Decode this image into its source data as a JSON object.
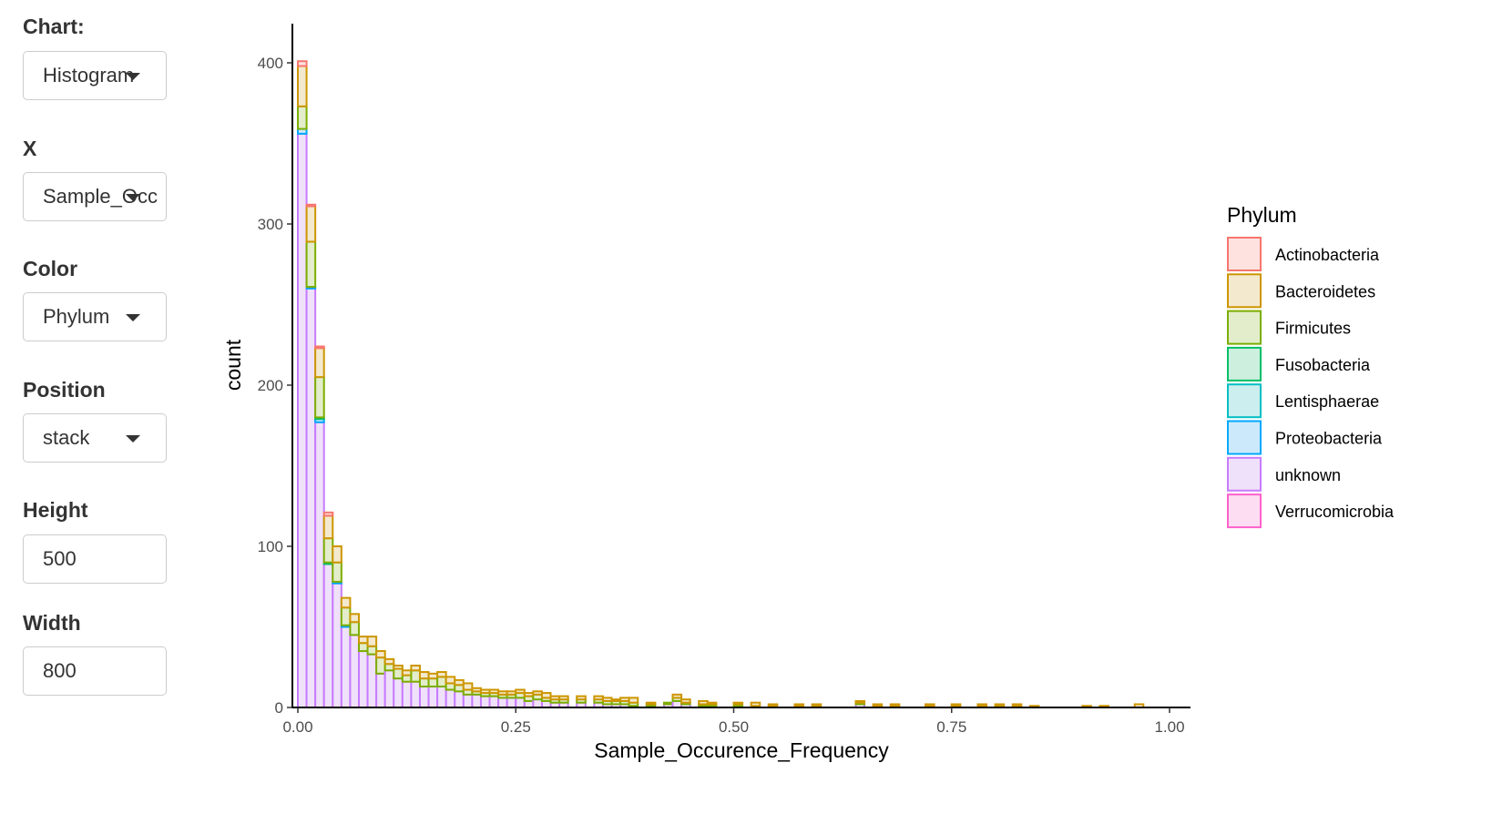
{
  "sidebar": {
    "chart": {
      "label": "Chart:",
      "value": "Histogram"
    },
    "x": {
      "label": "X",
      "value": "Sample_Occ"
    },
    "color": {
      "label": "Color",
      "value": "Phylum"
    },
    "position": {
      "label": "Position",
      "value": "stack"
    },
    "height": {
      "label": "Height",
      "value": "500"
    },
    "width": {
      "label": "Width",
      "value": "800"
    }
  },
  "chart_data": {
    "type": "bar",
    "subtype": "stacked-histogram",
    "xlabel": "Sample_Occurence_Frequency",
    "ylabel": "count",
    "xlim": [
      0,
      1.03
    ],
    "ylim": [
      0,
      420
    ],
    "xticks": [
      0,
      0.25,
      0.5,
      0.75,
      1.0
    ],
    "xtick_labels": [
      "0.00",
      "0.25",
      "0.50",
      "0.75",
      "1.00"
    ],
    "yticks": [
      0,
      100,
      200,
      300,
      400
    ],
    "ytick_labels": [
      "0",
      "100",
      "200",
      "300",
      "400"
    ],
    "grid": false,
    "legend_position": "right",
    "legend_title": "Phylum",
    "bin_width": 0.01,
    "bin_starts": [
      0.0,
      0.01,
      0.02,
      0.03,
      0.04,
      0.05,
      0.06,
      0.07,
      0.08,
      0.09,
      0.1,
      0.11,
      0.12,
      0.13,
      0.14,
      0.15,
      0.16,
      0.17,
      0.18,
      0.19,
      0.2,
      0.21,
      0.22,
      0.23,
      0.24,
      0.25,
      0.26,
      0.27,
      0.28,
      0.29,
      0.3,
      0.32,
      0.34,
      0.35,
      0.36,
      0.37,
      0.38,
      0.4,
      0.42,
      0.43,
      0.44,
      0.46,
      0.47,
      0.5,
      0.52,
      0.54,
      0.57,
      0.59,
      0.64,
      0.66,
      0.68,
      0.72,
      0.75,
      0.78,
      0.8,
      0.82,
      0.84,
      0.9,
      0.92,
      0.96
    ],
    "series": [
      {
        "name": "Actinobacteria",
        "color": "#F8766D",
        "fill": "#FDE2E0",
        "values": [
          3,
          1,
          1,
          2,
          0,
          0,
          0,
          0,
          0,
          0,
          0,
          0,
          0,
          0,
          0,
          0,
          0,
          0,
          0,
          0,
          0,
          0,
          0,
          0,
          0,
          0,
          0,
          0,
          0,
          0,
          0,
          0,
          0,
          0,
          0,
          0,
          0,
          0,
          0,
          0,
          0,
          0,
          0,
          0,
          0,
          0,
          0,
          0,
          0,
          0,
          0,
          0,
          0,
          0,
          0,
          0,
          0,
          0,
          0,
          0
        ]
      },
      {
        "name": "Bacteroidetes",
        "color": "#CD9600",
        "fill": "#F3E9CE",
        "values": [
          25,
          22,
          18,
          14,
          10,
          6,
          5,
          4,
          6,
          4,
          3,
          2,
          3,
          3,
          4,
          3,
          3,
          4,
          3,
          4,
          2,
          2,
          2,
          2,
          2,
          2,
          2,
          2,
          3,
          2,
          2,
          2,
          2,
          2,
          1,
          2,
          3,
          1,
          0,
          2,
          2,
          2,
          1,
          1,
          2,
          1,
          1,
          1,
          1,
          1,
          1,
          1,
          1,
          1,
          1,
          1,
          1,
          1,
          1,
          2
        ]
      },
      {
        "name": "Firmicutes",
        "color": "#7CAE00",
        "fill": "#E3EDCB",
        "values": [
          14,
          28,
          25,
          15,
          12,
          11,
          8,
          5,
          5,
          10,
          4,
          6,
          4,
          7,
          5,
          5,
          6,
          4,
          4,
          3,
          2,
          2,
          2,
          2,
          2,
          3,
          3,
          3,
          2,
          2,
          2,
          2,
          2,
          2,
          2,
          2,
          2,
          1,
          1,
          2,
          1,
          1,
          1,
          1,
          0,
          0,
          0,
          0,
          1,
          1,
          0,
          0,
          1,
          0,
          1,
          0,
          0,
          0,
          0,
          0
        ]
      },
      {
        "name": "Fusobacteria",
        "color": "#00BE67",
        "fill": "#CCEFDE",
        "values": [
          0,
          0,
          1,
          1,
          0,
          0,
          0,
          0,
          0,
          0,
          0,
          0,
          0,
          0,
          0,
          0,
          0,
          0,
          0,
          0,
          0,
          0,
          0,
          0,
          0,
          0,
          0,
          0,
          0,
          0,
          0,
          0,
          0,
          0,
          0,
          0,
          0,
          0,
          0,
          0,
          0,
          0,
          0,
          0,
          0,
          0,
          0,
          0,
          0,
          0,
          0,
          0,
          0,
          0,
          0,
          0,
          0,
          0,
          0,
          0
        ]
      },
      {
        "name": "Lentisphaerae",
        "color": "#00BFC4",
        "fill": "#CCEEEF",
        "values": [
          0,
          0,
          0,
          0,
          0,
          0,
          0,
          0,
          0,
          0,
          0,
          0,
          0,
          0,
          0,
          0,
          0,
          0,
          0,
          0,
          0,
          0,
          0,
          0,
          0,
          0,
          0,
          0,
          0,
          0,
          0,
          0,
          0,
          0,
          0,
          0,
          0,
          0,
          0,
          0,
          0,
          0,
          0,
          0,
          0,
          0,
          0,
          0,
          0,
          0,
          0,
          0,
          0,
          0,
          0,
          0,
          0,
          0,
          0,
          0
        ]
      },
      {
        "name": "Proteobacteria",
        "color": "#00A9FF",
        "fill": "#CCE9FB",
        "values": [
          3,
          1,
          2,
          0,
          1,
          1,
          0,
          0,
          0,
          0,
          0,
          0,
          0,
          0,
          0,
          0,
          0,
          0,
          0,
          0,
          0,
          0,
          0,
          0,
          0,
          0,
          0,
          0,
          0,
          0,
          0,
          0,
          0,
          0,
          0,
          0,
          0,
          0,
          0,
          0,
          0,
          0,
          0,
          0,
          0,
          0,
          0,
          0,
          0,
          0,
          0,
          0,
          0,
          0,
          0,
          0,
          0,
          0,
          0,
          0
        ]
      },
      {
        "name": "unknown",
        "color": "#C77CFF",
        "fill": "#F0E1FA",
        "values": [
          356,
          260,
          177,
          89,
          77,
          50,
          45,
          35,
          33,
          21,
          23,
          18,
          16,
          16,
          13,
          13,
          13,
          11,
          10,
          8,
          8,
          7,
          7,
          6,
          6,
          6,
          4,
          5,
          4,
          3,
          3,
          3,
          3,
          2,
          2,
          2,
          1,
          1,
          2,
          4,
          2,
          1,
          1,
          1,
          1,
          1,
          1,
          1,
          2,
          0,
          1,
          1,
          0,
          1,
          0,
          1,
          0,
          0,
          0,
          0
        ]
      },
      {
        "name": "Verrucomicrobia",
        "color": "#FF61CC",
        "fill": "#FCDDF1",
        "values": [
          0,
          0,
          0,
          0,
          0,
          0,
          0,
          0,
          0,
          0,
          0,
          0,
          0,
          0,
          0,
          0,
          0,
          0,
          0,
          0,
          0,
          0,
          0,
          0,
          0,
          0,
          0,
          0,
          0,
          0,
          0,
          0,
          0,
          0,
          0,
          0,
          0,
          0,
          0,
          0,
          0,
          0,
          0,
          0,
          0,
          0,
          0,
          0,
          0,
          0,
          0,
          0,
          0,
          0,
          0,
          0,
          0,
          0,
          0,
          0
        ]
      }
    ]
  }
}
